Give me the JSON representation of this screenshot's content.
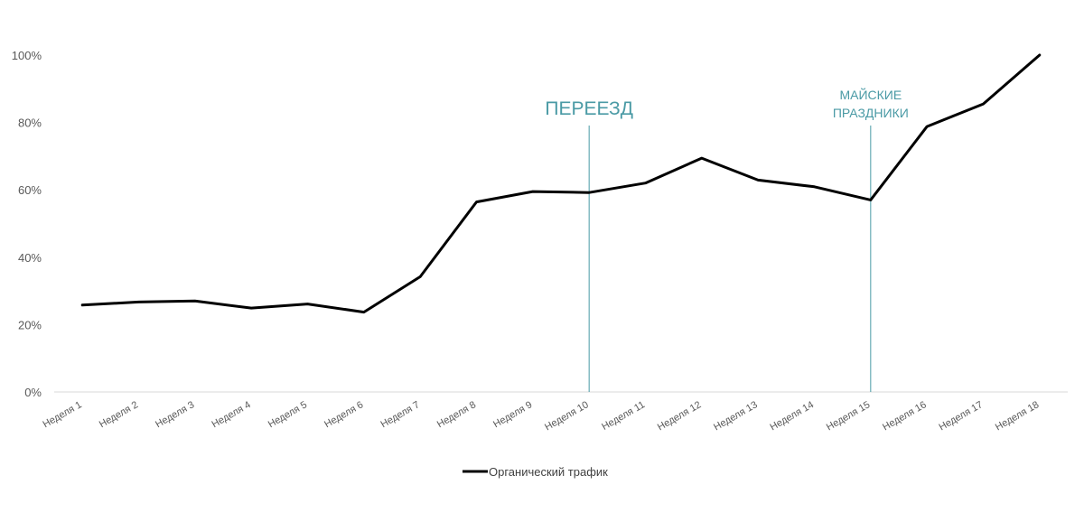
{
  "chart_data": {
    "type": "line",
    "title": "",
    "xlabel": "",
    "ylabel": "",
    "categories": [
      "Неделя 1",
      "Неделя 2",
      "Неделя 3",
      "Неделя 4",
      "Неделя 5",
      "Неделя 6",
      "Неделя 7",
      "Неделя 8",
      "Неделя 9",
      "Неделя 10",
      "Неделя 11",
      "Неделя 12",
      "Неделя 13",
      "Неделя 14",
      "Неделя 15",
      "Неделя 16",
      "Неделя 17",
      "Неделя 18"
    ],
    "series": [
      {
        "name": "Органический трафик",
        "values": [
          25.8,
          26.7,
          27.0,
          24.9,
          26.1,
          23.7,
          34.2,
          56.4,
          59.5,
          59.2,
          62.0,
          69.4,
          62.9,
          60.9,
          57.0,
          78.8,
          85.5,
          100.0
        ],
        "color": "#000000"
      }
    ],
    "ylim": [
      0,
      100
    ],
    "yticks": [
      "0%",
      "20%",
      "40%",
      "60%",
      "80%",
      "100%"
    ],
    "grid": false,
    "legend": "bottom",
    "annotations": [
      {
        "category": "Неделя 10",
        "lines": [
          "ПЕРЕЕЗД"
        ]
      },
      {
        "category": "Неделя 15",
        "lines": [
          "МАЙСКИЕ",
          "ПРАЗДНИКИ"
        ]
      }
    ],
    "annotation_color": "#4a9aa5"
  }
}
